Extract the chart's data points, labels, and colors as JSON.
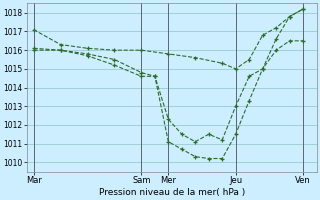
{
  "xlabel": "Pression niveau de la mer( hPa )",
  "background_color": "#cceeff",
  "grid_color": "#99cccc",
  "line_color": "#2d6b2d",
  "ylim": [
    1009.5,
    1018.5
  ],
  "yticks": [
    1010,
    1011,
    1012,
    1013,
    1014,
    1015,
    1016,
    1017,
    1018
  ],
  "day_labels": [
    "Mar",
    "Sam",
    "Mer",
    "Jeu",
    "Ven"
  ],
  "day_positions": [
    0,
    8,
    10,
    15,
    20
  ],
  "xlim": [
    -0.5,
    21
  ],
  "line1_x": [
    0,
    2,
    4,
    6,
    8,
    10,
    12,
    14,
    15,
    16,
    17,
    18,
    19,
    20
  ],
  "line1_y": [
    1017.1,
    1016.3,
    1016.1,
    1016.0,
    1016.0,
    1015.8,
    1015.6,
    1015.3,
    1015.0,
    1015.5,
    1016.8,
    1017.2,
    1017.8,
    1018.2
  ],
  "line2_x": [
    0,
    2,
    4,
    6,
    8,
    9,
    10,
    11,
    12,
    13,
    14,
    15,
    16,
    17,
    18,
    19,
    20
  ],
  "line2_y": [
    1016.0,
    1016.0,
    1015.8,
    1015.5,
    1014.8,
    1014.6,
    1011.1,
    1010.7,
    1010.3,
    1010.2,
    1010.2,
    1011.5,
    1013.3,
    1015.0,
    1016.6,
    1017.8,
    1018.2
  ],
  "line3_x": [
    0,
    2,
    4,
    6,
    8,
    9,
    10,
    11,
    12,
    13,
    14,
    15,
    16,
    17,
    18,
    19,
    20
  ],
  "line3_y": [
    1016.1,
    1016.0,
    1015.7,
    1015.2,
    1014.6,
    1014.6,
    1012.3,
    1011.5,
    1011.1,
    1011.5,
    1011.2,
    1013.0,
    1014.6,
    1015.0,
    1016.0,
    1016.5,
    1016.5
  ]
}
